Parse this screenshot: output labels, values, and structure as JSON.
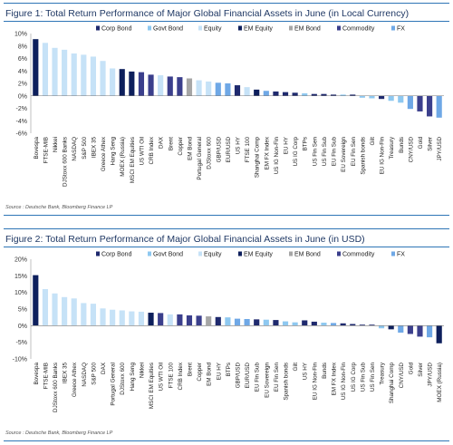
{
  "legend": {
    "items": [
      {
        "name": "Corp Bond",
        "color": "#1f2a6e"
      },
      {
        "name": "Govt Bond",
        "color": "#8ec8f0"
      },
      {
        "name": "Equity",
        "color": "#c6e2f7"
      },
      {
        "name": "EM Equity",
        "color": "#0d1f5c"
      },
      {
        "name": "EM Bond",
        "color": "#a6a6a6"
      },
      {
        "name": "Commodity",
        "color": "#3b3f8c"
      },
      {
        "name": "FX",
        "color": "#6fa8e6"
      }
    ]
  },
  "chart_data": [
    {
      "type": "bar",
      "title": "Figure 1: Total Return Performance of Major Global Financial Assets in June (in Local Currency)",
      "source": "Source : Deutsche Bank, Bloomberg Finance LP",
      "ylim": [
        -6,
        10
      ],
      "yticks": [
        -6,
        -4,
        -2,
        0,
        2,
        4,
        6,
        8,
        10
      ],
      "ytick_suffix": "%",
      "categories": [
        "Bovespa",
        "FTSE-MIB",
        "Nikkei",
        "DJStoxx 600 Banks",
        "NASDAQ",
        "S&P 500",
        "IBEX 35",
        "Greece Athex",
        "Hang Seng",
        "MOEX (Russia)",
        "MSCI EM Equities",
        "US WTI Oil",
        "CRB Index",
        "DAX",
        "Brent",
        "Copper",
        "EM Bond",
        "Portugal General",
        "DJStoxx 600",
        "GBP/USD",
        "EUR/USD",
        "US HY",
        "FTSE 100",
        "Shanghai Comp",
        "EM FX Index",
        "US IG Non-Fin",
        "EU HY",
        "US IG Corp",
        "BTPs",
        "US Fin Sen",
        "US Fin Sub",
        "EU Fin Sub",
        "EU Sovereign",
        "EU Fin Sen",
        "Spanish bonds",
        "Gilt",
        "EU IG Non-Fin",
        "Treasury",
        "Bunds",
        "CNY/USD",
        "Gold",
        "Silver",
        "JPY/USD"
      ],
      "values": [
        9.1,
        8.5,
        7.7,
        7.4,
        6.8,
        6.6,
        6.3,
        5.6,
        4.4,
        4.3,
        3.9,
        3.8,
        3.4,
        3.3,
        3.1,
        3.0,
        2.8,
        2.5,
        2.3,
        2.1,
        2.0,
        1.7,
        1.4,
        1.0,
        0.8,
        0.7,
        0.6,
        0.5,
        0.4,
        0.3,
        0.3,
        0.2,
        0.2,
        0.2,
        -0.3,
        -0.4,
        -0.5,
        -0.8,
        -1.1,
        -2.1,
        -2.5,
        -3.3,
        -3.5
      ],
      "groups": [
        "EM Equity",
        "Equity",
        "Equity",
        "Equity",
        "Equity",
        "Equity",
        "Equity",
        "Equity",
        "Equity",
        "EM Equity",
        "EM Equity",
        "Commodity",
        "Commodity",
        "Equity",
        "Commodity",
        "Commodity",
        "EM Bond",
        "Equity",
        "Equity",
        "FX",
        "FX",
        "Corp Bond",
        "Equity",
        "EM Equity",
        "FX",
        "Corp Bond",
        "Corp Bond",
        "Corp Bond",
        "Govt Bond",
        "Corp Bond",
        "Corp Bond",
        "Corp Bond",
        "Govt Bond",
        "Corp Bond",
        "Govt Bond",
        "Govt Bond",
        "Corp Bond",
        "Govt Bond",
        "Govt Bond",
        "FX",
        "Commodity",
        "Commodity",
        "FX"
      ]
    },
    {
      "type": "bar",
      "title": "Figure 2: Total Return Performance of Major Global Financial Assets in June (in USD)",
      "source": "Source : Deutsche Bank, Bloomberg Finance LP",
      "ylim": [
        -10,
        20
      ],
      "yticks": [
        -10,
        -5,
        0,
        5,
        10,
        15,
        20
      ],
      "ytick_suffix": "%",
      "categories": [
        "Bovespa",
        "FTSE-MIB",
        "DJStoxx 600 Banks",
        "IBEX 35",
        "Greece Athex",
        "NASDAQ",
        "S&P 500",
        "DAX",
        "Portugal General",
        "DJStoxx 600",
        "Hang Seng",
        "Nikkei",
        "MSCI EM Equities",
        "US WTI Oil",
        "FTSE 100",
        "CRB Index",
        "Brent",
        "Copper",
        "EM Bond",
        "EU HY",
        "BTPs",
        "GBP/USD",
        "EUR/USD",
        "EU Fin Sub",
        "EU Sovereign",
        "EU Fin Sen",
        "Spanish bonds",
        "Gilt",
        "US HY",
        "EU IG Non-Fin",
        "Bunds",
        "EM FX Index",
        "US IG Non-Fin",
        "US IG Corp",
        "US Fin Sub",
        "US Fin Sen",
        "Treasury",
        "Shanghai Comp",
        "CNY/USD",
        "Gold",
        "Silver",
        "JPY/USD",
        "MOEX (Russia)"
      ],
      "values": [
        15.2,
        11.0,
        9.7,
        8.6,
        8.2,
        6.8,
        6.6,
        5.2,
        4.8,
        4.6,
        4.3,
        4.2,
        3.9,
        3.8,
        3.4,
        3.4,
        3.1,
        3.0,
        2.8,
        2.6,
        2.5,
        2.1,
        2.0,
        1.9,
        1.8,
        1.7,
        1.3,
        1.0,
        1.6,
        1.2,
        0.9,
        0.8,
        0.7,
        0.5,
        0.3,
        0.3,
        -0.8,
        -1.1,
        -2.1,
        -2.5,
        -3.3,
        -3.5,
        -5.3
      ],
      "groups": [
        "EM Equity",
        "Equity",
        "Equity",
        "Equity",
        "Equity",
        "Equity",
        "Equity",
        "Equity",
        "Equity",
        "Equity",
        "Equity",
        "Equity",
        "EM Equity",
        "Commodity",
        "Equity",
        "Commodity",
        "Commodity",
        "Commodity",
        "EM Bond",
        "Corp Bond",
        "Govt Bond",
        "FX",
        "FX",
        "Corp Bond",
        "Govt Bond",
        "Corp Bond",
        "Govt Bond",
        "Govt Bond",
        "Corp Bond",
        "Corp Bond",
        "Govt Bond",
        "FX",
        "Corp Bond",
        "Corp Bond",
        "Corp Bond",
        "Corp Bond",
        "Govt Bond",
        "EM Equity",
        "FX",
        "Commodity",
        "Commodity",
        "FX",
        "EM Equity"
      ]
    }
  ]
}
